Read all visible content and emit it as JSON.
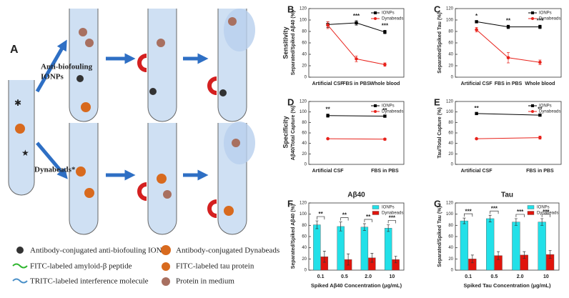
{
  "diagram": {
    "label": "A",
    "top_arm": [
      "Anti-biofouling",
      "IONPs"
    ],
    "bottom_arm": "Dynabeads*",
    "legend": [
      "Antibody-conjugated anti-biofouling IONP",
      "Antibody-conjugated Dynabeads",
      "FITC-labeled amyloid-β peptide",
      "FITC-labeled tau protein",
      "TRITC-labeled interference molecule",
      "Protein in medium"
    ]
  },
  "row_labels": [
    "Sensitivity",
    "Specificity"
  ],
  "chart_data": [
    {
      "type": "line",
      "label": "B",
      "ylabel": "Separated/Spiked Aβ40 (%)",
      "categories": [
        "Artificial CSF",
        "FBS in PBS",
        "Whole blood"
      ],
      "ylim": [
        0,
        120
      ],
      "yticks": [
        0,
        20,
        40,
        60,
        80,
        100,
        120
      ],
      "legend": "upper right",
      "series": [
        {
          "name": "IONPs",
          "color": "#000000",
          "values": [
            92,
            95,
            79
          ],
          "errors": [
            5,
            4,
            3
          ]
        },
        {
          "name": "Dynabeads",
          "color": "#e8231c",
          "values": [
            91,
            32,
            22
          ],
          "errors": [
            6,
            5,
            3
          ]
        }
      ],
      "annotations": [
        null,
        "***",
        "***"
      ]
    },
    {
      "type": "line",
      "label": "C",
      "ylabel": "Separated/Spiked Tau (%)",
      "categories": [
        "Artificial CSF",
        "FBS in PBS",
        "Whole blood"
      ],
      "ylim": [
        0,
        120
      ],
      "yticks": [
        0,
        20,
        40,
        60,
        80,
        100,
        120
      ],
      "legend": "upper right",
      "series": [
        {
          "name": "IONPs",
          "color": "#000000",
          "values": [
            97,
            88,
            88
          ],
          "errors": [
            2,
            3,
            3
          ]
        },
        {
          "name": "Dynabeads",
          "color": "#e8231c",
          "values": [
            83,
            34,
            26
          ],
          "errors": [
            4,
            9,
            4
          ]
        }
      ],
      "annotations": [
        "*",
        "**",
        "***"
      ]
    },
    {
      "type": "line",
      "label": "D",
      "ylabel": "Aβ40/Total Capture (%)",
      "categories": [
        "Artificial CSF",
        "FBS in PBS"
      ],
      "ylim": [
        0,
        120
      ],
      "yticks": [
        0,
        20,
        40,
        60,
        80,
        100,
        120
      ],
      "legend": "upper right",
      "series": [
        {
          "name": "IONPs",
          "color": "#000000",
          "values": [
            93,
            92
          ],
          "errors": [
            3,
            2
          ]
        },
        {
          "name": "Dynabeads",
          "color": "#e8231c",
          "values": [
            49,
            48
          ],
          "errors": [
            1,
            2
          ]
        }
      ],
      "annotations": [
        "**",
        "**"
      ]
    },
    {
      "type": "line",
      "label": "E",
      "ylabel": "Tau/Total Capture (%)",
      "categories": [
        "Artificial CSF",
        "FBS in PBS"
      ],
      "ylim": [
        0,
        120
      ],
      "yticks": [
        0,
        20,
        40,
        60,
        80,
        100,
        120
      ],
      "legend": "upper right",
      "series": [
        {
          "name": "IONPs",
          "color": "#000000",
          "values": [
            97,
            94
          ],
          "errors": [
            1,
            2
          ]
        },
        {
          "name": "Dynabeads",
          "color": "#e8231c",
          "values": [
            49,
            51
          ],
          "errors": [
            1,
            3
          ]
        }
      ],
      "annotations": [
        "**",
        "**"
      ]
    },
    {
      "type": "bar",
      "label": "F",
      "title": "Aβ40",
      "ylabel": "Separated/Spiked Aβ40 (%)",
      "xlabel": "Spiked Aβ40 Concentration (μg/mL)",
      "categories": [
        "0.1",
        "0.5",
        "2.0",
        "10"
      ],
      "ylim": [
        0,
        120
      ],
      "yticks": [
        0,
        20,
        40,
        60,
        80,
        100,
        120
      ],
      "legend": "upper right",
      "series": [
        {
          "name": "IONPs",
          "color": "#22e0e8",
          "values": [
            81,
            78,
            77,
            75
          ],
          "errors": [
            7,
            8,
            6,
            6
          ]
        },
        {
          "name": "Dynabeads",
          "color": "#e0140c",
          "values": [
            24,
            19,
            22,
            19
          ],
          "errors": [
            10,
            10,
            8,
            6
          ]
        }
      ],
      "annotations": [
        "**",
        "**",
        "**",
        "***"
      ]
    },
    {
      "type": "bar",
      "label": "G",
      "title": "Tau",
      "ylabel": "Separated/Spiked Tau (%)",
      "xlabel": "Spiked Tau Concentration (μg/mL)",
      "categories": [
        "0.1",
        "0.5",
        "2.0",
        "10"
      ],
      "ylim": [
        0,
        120
      ],
      "yticks": [
        0,
        20,
        40,
        60,
        80,
        100,
        120
      ],
      "legend": "upper right",
      "series": [
        {
          "name": "IONPs",
          "color": "#22e0e8",
          "values": [
            88,
            92,
            86,
            86
          ],
          "errors": [
            5,
            6,
            6,
            6
          ]
        },
        {
          "name": "Dynabeads",
          "color": "#e0140c",
          "values": [
            20,
            26,
            27,
            28
          ],
          "errors": [
            7,
            7,
            6,
            7
          ]
        }
      ],
      "annotations": [
        "***",
        "***",
        "***",
        "***"
      ]
    }
  ]
}
